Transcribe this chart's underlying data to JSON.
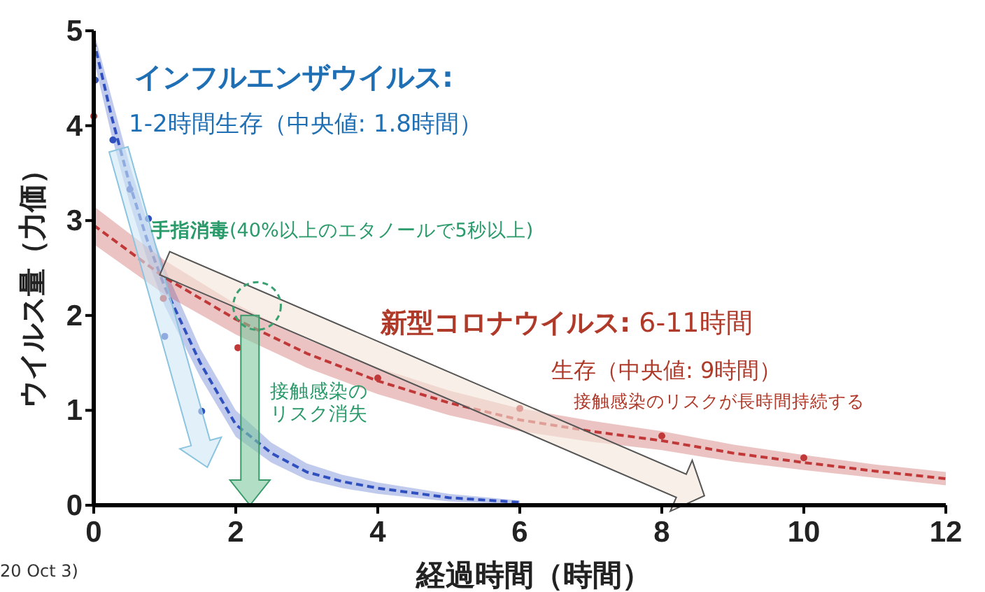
{
  "chart_data": {
    "type": "line",
    "xlabel": "経過時間（時間）",
    "ylabel": "ウイルス量（力価）",
    "xlim": [
      0,
      12
    ],
    "ylim": [
      0,
      5
    ],
    "xticks": [
      0,
      2,
      4,
      6,
      8,
      10,
      12
    ],
    "yticks": [
      0,
      1,
      2,
      3,
      4,
      5
    ],
    "grid": false,
    "series": [
      {
        "color": "#3050c0",
        "line_style": "dashed",
        "marker": "none",
        "x": [
          0,
          0.25,
          0.5,
          0.75,
          1,
          1.5,
          2,
          2.5,
          3,
          3.5,
          4,
          5,
          6
        ],
        "values": [
          4.9,
          4.1,
          3.4,
          2.8,
          2.3,
          1.5,
          0.85,
          0.55,
          0.35,
          0.25,
          0.18,
          0.08,
          0.03
        ],
        "lower": [
          4.7,
          3.9,
          3.2,
          2.6,
          2.1,
          1.35,
          0.72,
          0.45,
          0.27,
          0.18,
          0.12,
          0.04,
          0.01
        ],
        "upper": [
          5,
          4.3,
          3.6,
          3.0,
          2.5,
          1.65,
          1.0,
          0.66,
          0.44,
          0.32,
          0.24,
          0.12,
          0.05
        ]
      },
      {
        "type": "scatter",
        "color": "#3050c0",
        "marker": "circle",
        "x": [
          0.02,
          0.27,
          0.51,
          0.77,
          1.0,
          1.52
        ],
        "values": [
          4.48,
          3.85,
          3.33,
          3.02,
          1.78,
          0.99
        ]
      },
      {
        "color": "#c03838",
        "line_style": "dashed",
        "marker": "none",
        "x": [
          0,
          1,
          2,
          3,
          4,
          5,
          6,
          7,
          8,
          9,
          10,
          11,
          12
        ],
        "values": [
          2.95,
          2.4,
          1.96,
          1.6,
          1.31,
          1.08,
          0.9,
          0.78,
          0.68,
          0.55,
          0.45,
          0.36,
          0.28
        ],
        "lower": [
          2.75,
          2.22,
          1.8,
          1.45,
          1.17,
          0.95,
          0.78,
          0.67,
          0.58,
          0.46,
          0.37,
          0.29,
          0.21
        ],
        "upper": [
          3.15,
          2.58,
          2.12,
          1.75,
          1.45,
          1.21,
          1.02,
          0.89,
          0.78,
          0.64,
          0.53,
          0.43,
          0.35
        ]
      },
      {
        "type": "scatter",
        "color": "#c03838",
        "marker": "circle",
        "x": [
          0,
          0.98,
          2.03,
          4.0,
          6.0,
          8.0,
          10.0
        ],
        "values": [
          4.1,
          2.18,
          1.66,
          1.34,
          1.02,
          0.73,
          0.5
        ]
      }
    ],
    "annotations": [
      "インフルエンザウイルス:",
      "1-2時間生存（中央値: 1.8時間）",
      "**手指消毒**(40%以上のエタノールで5秒以上)",
      "接触感染のリスク消失",
      "**新型コロナウイルス:** 6-11時間",
      "生存（中央値: 9時間）",
      "接触感染のリスクが長時間持続する",
      "20 Oct 3)"
    ]
  }
}
